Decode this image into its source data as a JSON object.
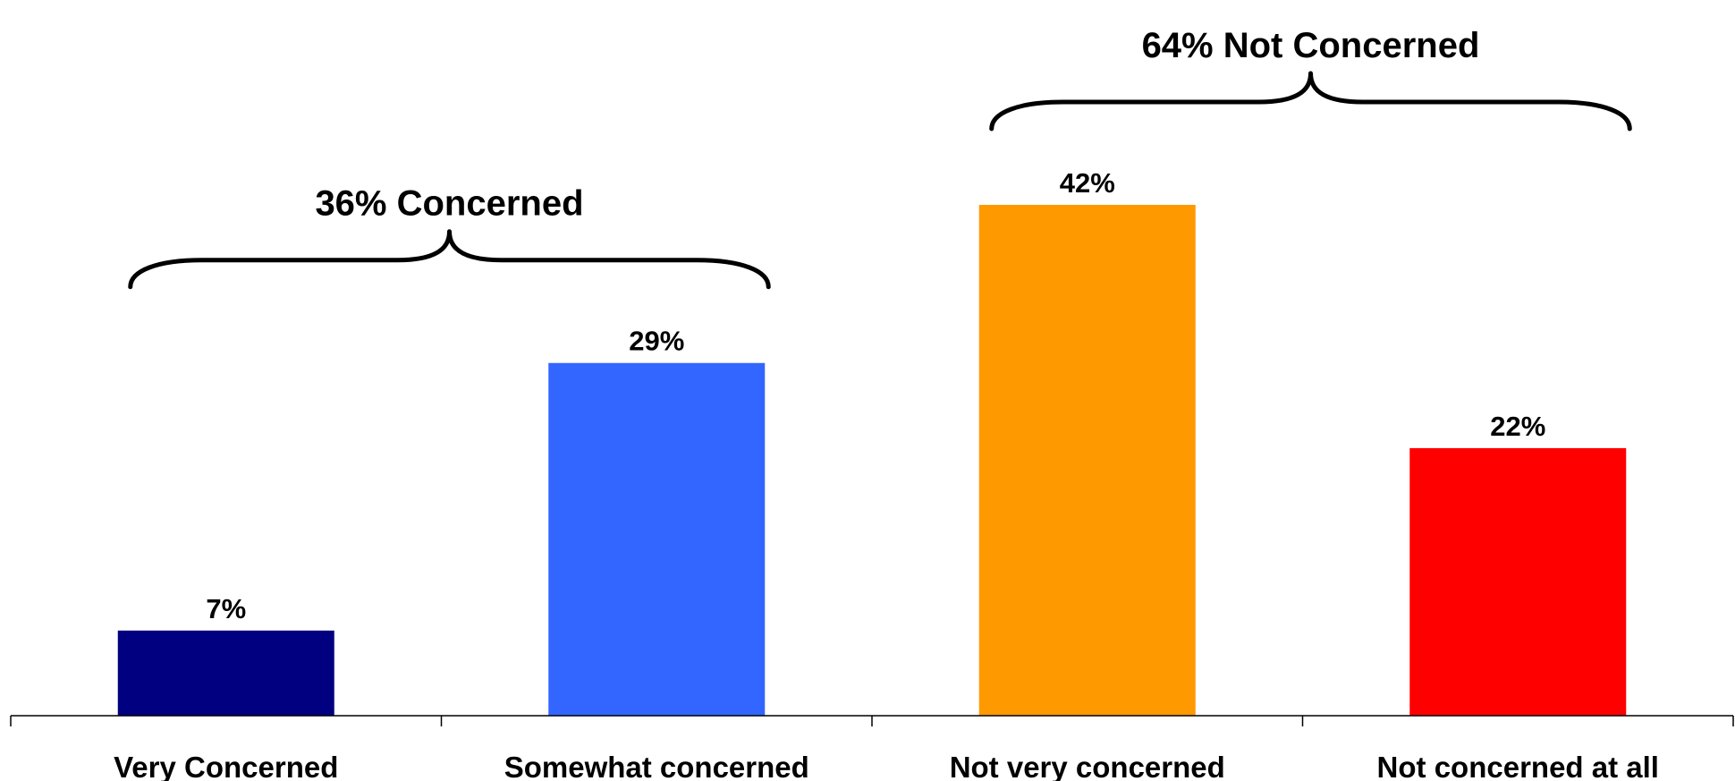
{
  "chart_data": {
    "type": "bar",
    "title": "",
    "xlabel": "",
    "ylabel": "",
    "ylim": [
      0,
      42
    ],
    "grid": false,
    "categories": [
      "Very Concerned",
      "Somewhat concerned",
      "Not very concerned",
      "Not concerned at all"
    ],
    "values": [
      7,
      29,
      42,
      22
    ],
    "data_labels": [
      "7%",
      "29%",
      "42%",
      "22%"
    ],
    "colors": [
      "#000080",
      "#3366FF",
      "#FF9900",
      "#FF0000"
    ],
    "groups": [
      {
        "label": "36% Concerned",
        "categories": [
          "Very Concerned",
          "Somewhat concerned"
        ]
      },
      {
        "label": "64% Not Concerned",
        "categories": [
          "Not very concerned",
          "Not concerned at all"
        ]
      }
    ]
  }
}
